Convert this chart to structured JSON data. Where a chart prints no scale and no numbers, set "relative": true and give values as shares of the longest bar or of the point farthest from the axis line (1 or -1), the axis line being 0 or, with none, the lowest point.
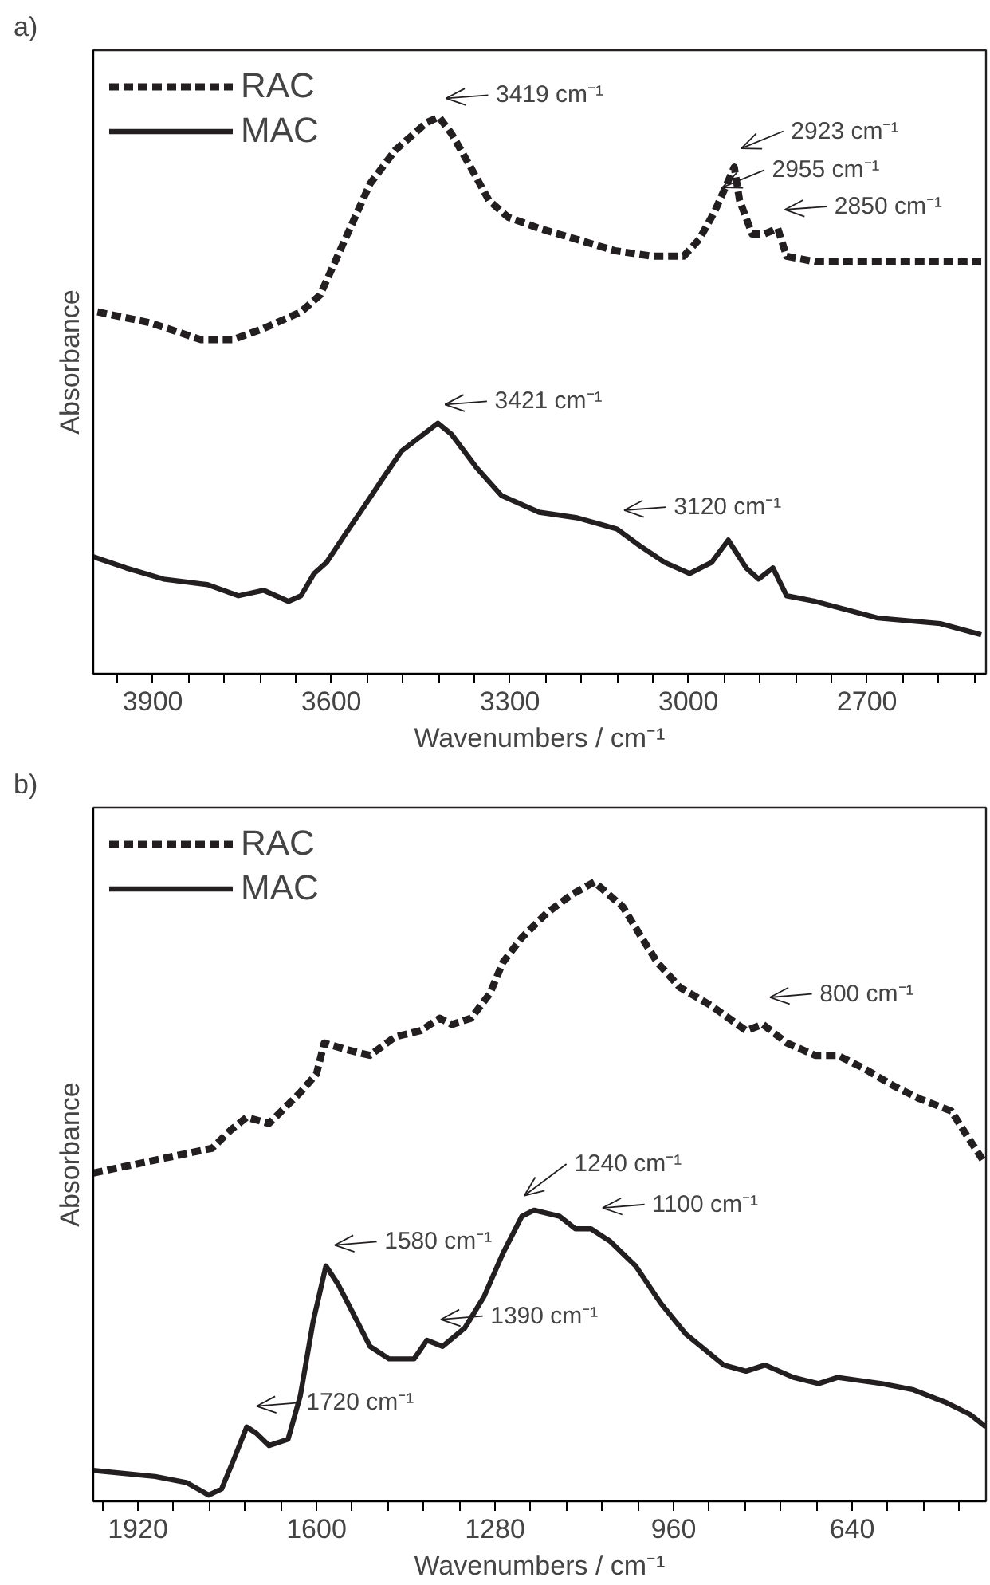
{
  "chart_data": [
    {
      "type": "line",
      "title": "a)",
      "xlabel": "Wavenumbers / cm⁻¹",
      "ylabel": "Absorbance",
      "relative": true,
      "legend": "top left",
      "grid": false,
      "tick_labels": "x",
      "xlim": [
        4000,
        2500
      ],
      "xticks": [
        {
          "value": 3960,
          "label": null
        },
        3900,
        {
          "value": 3840,
          "label": null
        },
        {
          "value": 3780,
          "label": null
        },
        {
          "value": 3720,
          "label": null
        },
        {
          "value": 3660,
          "label": null
        },
        3600,
        {
          "value": 3540,
          "label": null
        },
        {
          "value": 3480,
          "label": null
        },
        {
          "value": 3420,
          "label": null
        },
        {
          "value": 3360,
          "label": null
        },
        3300,
        {
          "value": 3240,
          "label": null
        },
        {
          "value": 3180,
          "label": null
        },
        {
          "value": 3120,
          "label": null
        },
        {
          "value": 3060,
          "label": null
        },
        3000,
        {
          "value": 2940,
          "label": null
        },
        {
          "value": 2880,
          "label": null
        },
        {
          "value": 2820,
          "label": null
        },
        {
          "value": 2760,
          "label": null
        },
        2700,
        {
          "value": 2640,
          "label": null
        },
        {
          "value": 2580,
          "label": null
        },
        {
          "value": 2520,
          "label": null
        }
      ],
      "series": [
        {
          "name": "RAC",
          "color": "#231f20",
          "line_style": "dashed",
          "x": [
            3993,
            3903,
            3819,
            3766,
            3714,
            3651,
            3619,
            3577,
            3535,
            3493,
            3440,
            3419,
            3398,
            3366,
            3335,
            3303,
            3251,
            3187,
            3124,
            3061,
            3008,
            2982,
            2956,
            2923,
            2914,
            2893,
            2872,
            2850,
            2835,
            2787,
            2682,
            2508
          ],
          "values": [
            0.65,
            0.63,
            0.6,
            0.6,
            0.62,
            0.65,
            0.68,
            0.78,
            0.88,
            0.94,
            0.99,
            1.0,
            0.97,
            0.91,
            0.85,
            0.82,
            0.8,
            0.78,
            0.76,
            0.75,
            0.75,
            0.78,
            0.83,
            0.91,
            0.85,
            0.79,
            0.79,
            0.8,
            0.75,
            0.74,
            0.74,
            0.74
          ]
        },
        {
          "name": "MAC",
          "color": "#231f20",
          "line_style": "solid",
          "x": [
            4000,
            3945,
            3882,
            3808,
            3756,
            3714,
            3672,
            3651,
            3629,
            3608,
            3577,
            3545,
            3514,
            3482,
            3421,
            3398,
            3356,
            3314,
            3251,
            3187,
            3120,
            3082,
            3040,
            2998,
            2961,
            2933,
            2903,
            2882,
            2858,
            2835,
            2787,
            2682,
            2577,
            2508
          ],
          "values": [
            0.21,
            0.19,
            0.17,
            0.16,
            0.14,
            0.15,
            0.13,
            0.14,
            0.18,
            0.2,
            0.25,
            0.3,
            0.35,
            0.4,
            0.45,
            0.43,
            0.37,
            0.32,
            0.29,
            0.28,
            0.26,
            0.23,
            0.2,
            0.18,
            0.2,
            0.24,
            0.19,
            0.17,
            0.19,
            0.14,
            0.13,
            0.1,
            0.09,
            0.07
          ]
        }
      ],
      "annotations": [
        {
          "text": "3419 cm⁻¹",
          "x": 3419,
          "y": 1.0
        },
        {
          "text": "3421 cm⁻¹",
          "x": 3421,
          "y": 0.45
        },
        {
          "text": "3120 cm⁻¹",
          "x": 3120,
          "y": 0.26
        },
        {
          "text": "2850 cm⁻¹",
          "x": 2850,
          "y": 0.8
        },
        {
          "text": "2955 cm⁻¹",
          "x": 2955,
          "y": 0.84
        },
        {
          "text": "2923 cm⁻¹",
          "x": 2923,
          "y": 0.91
        }
      ]
    },
    {
      "type": "line",
      "title": "b)",
      "xlabel": "Wavenumbers / cm⁻¹",
      "ylabel": "Absorbance",
      "relative": true,
      "legend": "top left",
      "grid": false,
      "tick_labels": "x",
      "xlim": [
        2000,
        400
      ],
      "xticks": [
        {
          "value": 1984,
          "label": null
        },
        1920,
        {
          "value": 1856,
          "label": null
        },
        {
          "value": 1792,
          "label": null
        },
        {
          "value": 1728,
          "label": null
        },
        {
          "value": 1664,
          "label": null
        },
        1600,
        {
          "value": 1536,
          "label": null
        },
        {
          "value": 1472,
          "label": null
        },
        {
          "value": 1408,
          "label": null
        },
        {
          "value": 1344,
          "label": null
        },
        1280,
        {
          "value": 1216,
          "label": null
        },
        {
          "value": 1152,
          "label": null
        },
        {
          "value": 1088,
          "label": null
        },
        {
          "value": 1024,
          "label": null
        },
        960,
        {
          "value": 896,
          "label": null
        },
        {
          "value": 832,
          "label": null
        },
        {
          "value": 768,
          "label": null
        },
        {
          "value": 704,
          "label": null
        },
        640,
        {
          "value": 576,
          "label": null
        },
        {
          "value": 512,
          "label": null
        },
        {
          "value": 448,
          "label": null
        }
      ],
      "series": [
        {
          "name": "RAC",
          "color": "#231f20",
          "line_style": "dashed",
          "x": [
            2000,
            1787,
            1753,
            1725,
            1685,
            1629,
            1600,
            1586,
            1549,
            1504,
            1459,
            1413,
            1379,
            1357,
            1323,
            1289,
            1266,
            1232,
            1187,
            1142,
            1102,
            1051,
            1017,
            989,
            949,
            892,
            830,
            800,
            757,
            706,
            666,
            621,
            564,
            519,
            462,
            434,
            405
          ],
          "values": [
            0.53,
            0.57,
            0.6,
            0.62,
            0.61,
            0.66,
            0.69,
            0.74,
            0.73,
            0.72,
            0.75,
            0.76,
            0.78,
            0.77,
            0.78,
            0.82,
            0.87,
            0.91,
            0.95,
            0.98,
            1.0,
            0.96,
            0.91,
            0.87,
            0.83,
            0.8,
            0.76,
            0.77,
            0.74,
            0.72,
            0.72,
            0.7,
            0.67,
            0.65,
            0.63,
            0.59,
            0.55
          ]
        },
        {
          "name": "MAC",
          "color": "#231f20",
          "line_style": "solid",
          "x": [
            2000,
            1889,
            1832,
            1793,
            1770,
            1747,
            1725,
            1708,
            1685,
            1651,
            1629,
            1606,
            1583,
            1561,
            1538,
            1504,
            1470,
            1425,
            1402,
            1374,
            1334,
            1300,
            1266,
            1232,
            1210,
            1164,
            1136,
            1108,
            1074,
            1028,
            983,
            938,
            870,
            830,
            796,
            745,
            700,
            666,
            587,
            530,
            473,
            428,
            400
          ],
          "values": [
            0.05,
            0.04,
            0.03,
            0.01,
            0.02,
            0.07,
            0.12,
            0.11,
            0.09,
            0.1,
            0.17,
            0.29,
            0.38,
            0.35,
            0.31,
            0.25,
            0.23,
            0.23,
            0.26,
            0.25,
            0.28,
            0.33,
            0.4,
            0.46,
            0.47,
            0.46,
            0.44,
            0.44,
            0.42,
            0.38,
            0.32,
            0.27,
            0.22,
            0.21,
            0.22,
            0.2,
            0.19,
            0.2,
            0.19,
            0.18,
            0.16,
            0.14,
            0.12
          ]
        }
      ],
      "annotations": [
        {
          "text": "800 cm⁻¹",
          "x": 800,
          "y": 0.78
        },
        {
          "text": "1720 cm⁻¹",
          "x": 1720,
          "y": 0.12
        },
        {
          "text": "1580 cm⁻¹",
          "x": 1580,
          "y": 0.38
        },
        {
          "text": "1390 cm⁻¹",
          "x": 1390,
          "y": 0.26
        },
        {
          "text": "1100 cm⁻¹",
          "x": 1100,
          "y": 0.44
        },
        {
          "text": "1240 cm⁻¹",
          "x": 1240,
          "y": 0.46
        }
      ]
    }
  ]
}
